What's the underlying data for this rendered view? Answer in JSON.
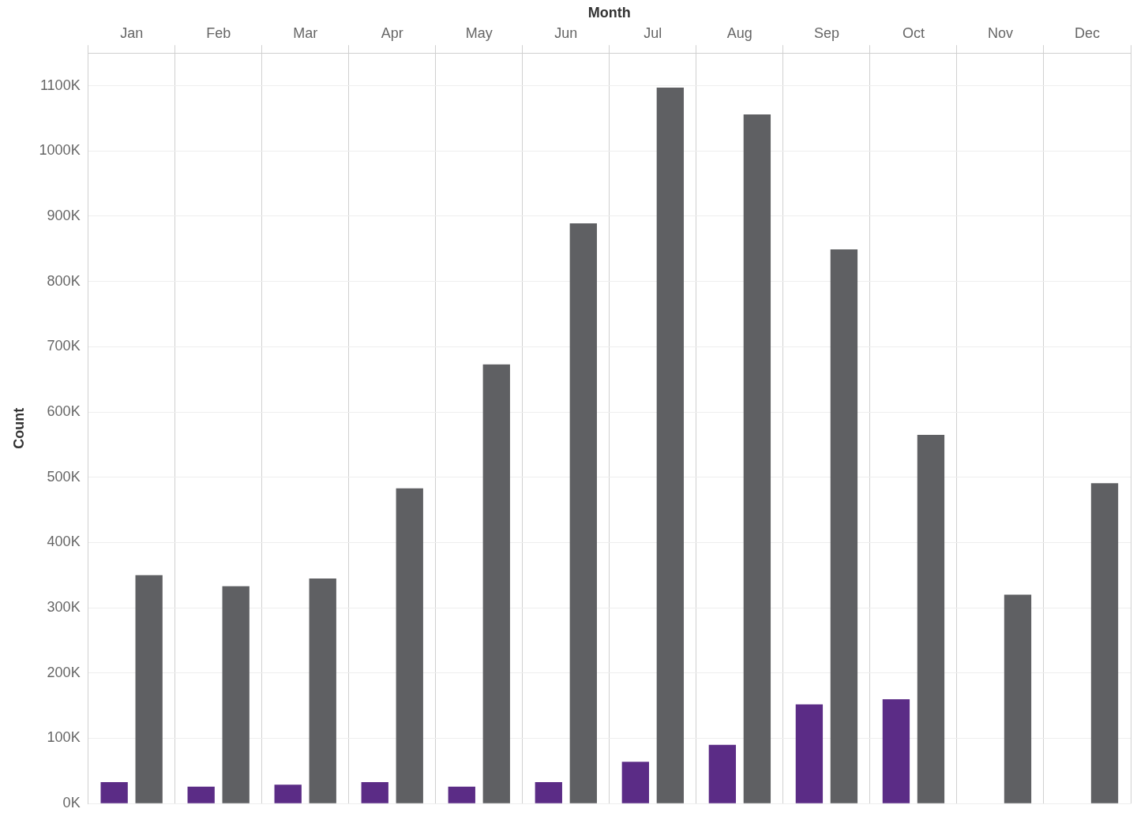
{
  "chart_data": {
    "type": "bar",
    "xlabel": "Month",
    "ylabel": "Count",
    "categories": [
      "Jan",
      "Feb",
      "Mar",
      "Apr",
      "May",
      "Jun",
      "Jul",
      "Aug",
      "Sep",
      "Oct",
      "Nov",
      "Dec"
    ],
    "series": [
      {
        "color": "#5b2c86",
        "values": [
          33000,
          26000,
          29000,
          33000,
          26000,
          33000,
          64000,
          90000,
          152000,
          160000,
          null,
          null
        ]
      },
      {
        "color": "#5f6063",
        "values": [
          350000,
          333000,
          345000,
          483000,
          673000,
          889000,
          1097000,
          1056000,
          849000,
          565000,
          320000,
          491000
        ]
      }
    ],
    "ylim": [
      0,
      1150000
    ],
    "yticks": [
      {
        "value": 0,
        "label": "0K"
      },
      {
        "value": 100000,
        "label": "100K"
      },
      {
        "value": 200000,
        "label": "200K"
      },
      {
        "value": 300000,
        "label": "300K"
      },
      {
        "value": 400000,
        "label": "400K"
      },
      {
        "value": 500000,
        "label": "500K"
      },
      {
        "value": 600000,
        "label": "600K"
      },
      {
        "value": 700000,
        "label": "700K"
      },
      {
        "value": 800000,
        "label": "800K"
      },
      {
        "value": 900000,
        "label": "900K"
      },
      {
        "value": 1000000,
        "label": "1000K"
      },
      {
        "value": 1100000,
        "label": "1100K"
      }
    ],
    "grid": true,
    "legend": false
  }
}
